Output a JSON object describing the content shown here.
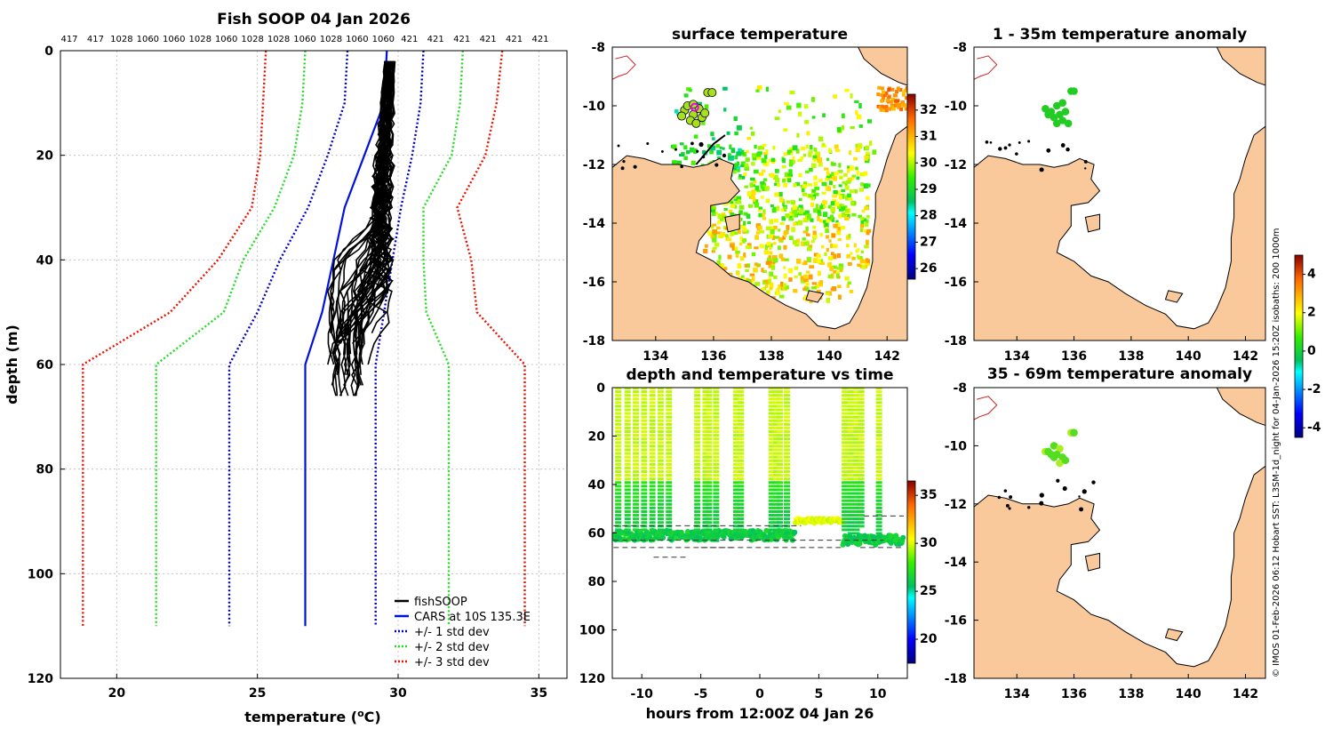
{
  "figure": {
    "copyright": "© IMOS 01-Feb-2026 06:12 Hobart SST: L3SM-1d_night for 04-Jan-2026 15:20Z isobaths: 200  1000m",
    "colors": {
      "land": "#f9c99c",
      "fishsoop": "#000000",
      "cars": "#0011dd",
      "sd1": "#0000cc",
      "sd2": "#22dd22",
      "sd3": "#ee1100"
    }
  },
  "chart_data": [
    {
      "id": "profile",
      "type": "line",
      "title": "Fish SOOP 04 Jan 2026",
      "xlabel": "temperature (",
      "xlabel_sup": "o",
      "xlabel_end": "C)",
      "ylabel": "depth (m)",
      "xlim": [
        18,
        36
      ],
      "ylim": [
        120,
        0
      ],
      "xticks": [
        20,
        25,
        30,
        35
      ],
      "yticks": [
        0,
        20,
        40,
        60,
        80,
        100,
        120
      ],
      "top_labels": [
        "417",
        "417",
        "1028",
        "1060",
        "1060",
        "1028",
        "1060",
        "1028",
        "1028",
        "1060",
        "1028",
        "1060",
        "1060",
        "421",
        "421",
        "421",
        "421",
        "421",
        "421"
      ],
      "legend": [
        "fishSOOP",
        "CARS at 10S 135.3E",
        "+/- 1 std dev",
        "+/- 2 std dev",
        "+/- 3 std dev"
      ],
      "series": [
        {
          "name": "CARS mean",
          "depth": [
            0,
            10,
            20,
            30,
            40,
            50,
            60,
            110
          ],
          "temp": [
            29.6,
            29.5,
            28.8,
            28.1,
            27.7,
            27.3,
            26.7,
            26.7
          ]
        },
        {
          "name": "-1 std",
          "depth": [
            0,
            10,
            20,
            30,
            40,
            50,
            60,
            110
          ],
          "temp": [
            28.2,
            28.1,
            27.5,
            26.8,
            25.8,
            25.0,
            24.0,
            24.0
          ]
        },
        {
          "name": "+1 std",
          "depth": [
            0,
            10,
            20,
            30,
            40,
            50,
            60,
            110
          ],
          "temp": [
            30.9,
            30.8,
            30.5,
            30.1,
            29.8,
            29.5,
            29.2,
            29.2
          ]
        },
        {
          "name": "-2 std",
          "depth": [
            0,
            10,
            20,
            30,
            40,
            50,
            60,
            110
          ],
          "temp": [
            26.7,
            26.6,
            26.3,
            25.6,
            24.5,
            23.8,
            21.4,
            21.4
          ]
        },
        {
          "name": "+2 std",
          "depth": [
            0,
            10,
            20,
            30,
            40,
            50,
            60,
            110
          ],
          "temp": [
            32.3,
            32.2,
            31.9,
            30.9,
            30.9,
            31.0,
            31.8,
            31.8
          ]
        },
        {
          "name": "-3 std",
          "depth": [
            0,
            10,
            20,
            30,
            40,
            50,
            60,
            110
          ],
          "temp": [
            25.3,
            25.2,
            25.1,
            24.8,
            23.6,
            21.9,
            18.8,
            18.8
          ]
        },
        {
          "name": "+3 std",
          "depth": [
            0,
            10,
            20,
            30,
            40,
            50,
            60,
            110
          ],
          "temp": [
            33.7,
            33.5,
            33.1,
            32.1,
            32.6,
            32.8,
            34.5,
            34.5
          ]
        }
      ]
    },
    {
      "id": "sst_map",
      "type": "heatmap",
      "title": "surface temperature",
      "xlim": [
        132.5,
        142.7
      ],
      "ylim": [
        -18,
        -8
      ],
      "xticks": [
        134,
        136,
        138,
        140,
        142
      ],
      "yticks": [
        -8,
        -10,
        -12,
        -14,
        -16,
        -18
      ],
      "colorbar": {
        "min": 25.6,
        "max": 32.6,
        "ticks": [
          26,
          27,
          28,
          29,
          30,
          31,
          32
        ]
      }
    },
    {
      "id": "anom1",
      "type": "heatmap",
      "title": "1 - 35m temperature anomaly",
      "xlim": [
        132.5,
        142.7
      ],
      "ylim": [
        -18,
        -8
      ],
      "xticks": [
        134,
        136,
        138,
        140,
        142
      ],
      "yticks": [
        -8,
        -10,
        -12,
        -14,
        -16,
        -18
      ]
    },
    {
      "id": "anom2",
      "type": "heatmap",
      "title": "35 - 69m temperature anomaly",
      "xlim": [
        132.5,
        142.7
      ],
      "ylim": [
        -18,
        -8
      ],
      "xticks": [
        134,
        136,
        138,
        140,
        142
      ],
      "yticks": [
        -8,
        -10,
        -12,
        -14,
        -16,
        -18
      ],
      "colorbar": {
        "min": -4.5,
        "max": 5.0,
        "ticks": [
          -4,
          -2,
          0,
          2,
          4
        ]
      }
    },
    {
      "id": "depth_time",
      "type": "scatter",
      "title": "depth and temperature vs time",
      "xlabel": "hours from 12:00Z 04 Jan 26",
      "xlim": [
        -12.5,
        12.5
      ],
      "ylim": [
        120,
        0
      ],
      "xticks": [
        -10,
        -5,
        0,
        5,
        10
      ],
      "yticks": [
        0,
        20,
        40,
        60,
        80,
        100,
        120
      ],
      "colorbar": {
        "min": 17.5,
        "max": 36.5,
        "ticks": [
          20,
          25,
          30,
          35
        ]
      },
      "dives": [
        -12,
        -11.2,
        -10.5,
        -9.8,
        -9.1,
        -8.4,
        -7.7,
        -5.3,
        -4.6,
        -4.3,
        -3.7,
        -2.0,
        -1.6,
        1.0,
        1.4,
        1.7,
        2.3,
        7.2,
        7.7,
        8.2,
        8.6,
        10.1
      ]
    }
  ]
}
